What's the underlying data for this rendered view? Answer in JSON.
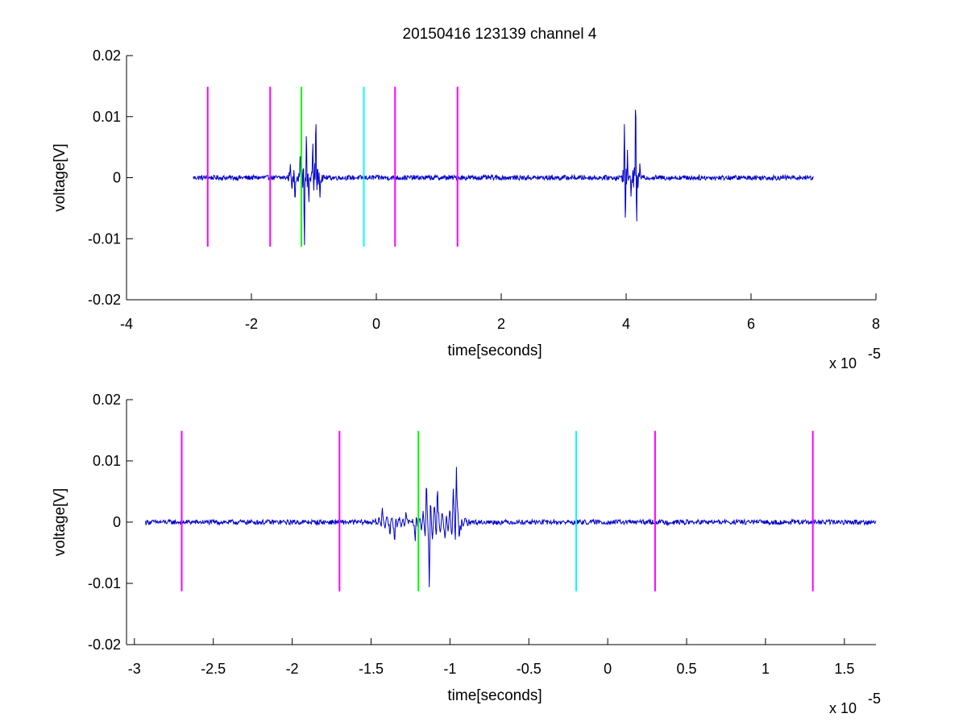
{
  "chart_data": [
    {
      "type": "line",
      "title": "20150416 123139 channel 4",
      "xlabel": "time[seconds]",
      "ylabel": "voltage[V]",
      "x_exponent_label": "x 10",
      "x_exponent_power": "-5",
      "xlim": [
        -4,
        8
      ],
      "ylim": [
        -0.02,
        0.02
      ],
      "x_ticks": [
        -4,
        -2,
        0,
        2,
        4,
        6,
        8
      ],
      "x_tick_labels": [
        "-4",
        "-2",
        "0",
        "2",
        "4",
        "6",
        "8"
      ],
      "y_ticks": [
        0.02,
        0.01,
        0,
        -0.01,
        -0.02
      ],
      "y_tick_labels": [
        "0.02",
        "0.01",
        "0",
        "-0.01",
        "-0.02"
      ],
      "series": [
        {
          "color": "#0000cc",
          "x_range": [
            -2.93,
            7.0
          ],
          "baseline": 0,
          "noise_amplitude": 0.0004,
          "bursts": [
            {
              "x": -1.38,
              "y": 0.003
            },
            {
              "x": -1.35,
              "y": -0.0025
            },
            {
              "x": -1.3,
              "y": -0.004
            },
            {
              "x": -1.22,
              "y": 0.004
            },
            {
              "x": -1.15,
              "y": -0.0105
            },
            {
              "x": -1.12,
              "y": 0.0065
            },
            {
              "x": -1.08,
              "y": -0.004
            },
            {
              "x": -1.02,
              "y": 0.006
            },
            {
              "x": -0.97,
              "y": 0.011
            },
            {
              "x": -0.9,
              "y": -0.003
            },
            {
              "x": 3.97,
              "y": 0.008
            },
            {
              "x": 3.99,
              "y": -0.0065
            },
            {
              "x": 4.02,
              "y": 0.004
            },
            {
              "x": 4.08,
              "y": -0.003
            },
            {
              "x": 4.15,
              "y": 0.0135
            },
            {
              "x": 4.17,
              "y": -0.0055
            },
            {
              "x": 4.22,
              "y": 0.002
            }
          ]
        }
      ],
      "vlines": [
        {
          "x": -2.7,
          "color": "#ff00ff"
        },
        {
          "x": -1.7,
          "color": "#ff00ff"
        },
        {
          "x": -1.2,
          "color": "#00ff00"
        },
        {
          "x": -0.2,
          "color": "#00ffff"
        },
        {
          "x": 0.3,
          "color": "#ff00ff"
        },
        {
          "x": 1.3,
          "color": "#ff00ff"
        }
      ],
      "vline_y_range": [
        -0.0113,
        0.0149
      ]
    },
    {
      "type": "line",
      "title": "",
      "xlabel": "time[seconds]",
      "ylabel": "voltage[V]",
      "x_exponent_label": "x 10",
      "x_exponent_power": "-5",
      "xlim": [
        -3.05,
        1.7
      ],
      "ylim": [
        -0.02,
        0.02
      ],
      "x_ticks": [
        -3,
        -2.5,
        -2,
        -1.5,
        -1,
        -0.5,
        0,
        0.5,
        1,
        1.5
      ],
      "x_tick_labels": [
        "-3",
        "-2.5",
        "-2",
        "-1.5",
        "-1",
        "-0.5",
        "0",
        "0.5",
        "1",
        "1.5"
      ],
      "y_ticks": [
        0.02,
        0.01,
        0,
        -0.01,
        -0.02
      ],
      "y_tick_labels": [
        "0.02",
        "0.01",
        "0",
        "-0.01",
        "-0.02"
      ],
      "series": [
        {
          "color": "#0000cc",
          "x_range": [
            -2.93,
            1.7
          ],
          "baseline": 0,
          "noise_amplitude": 0.0004,
          "bursts": [
            {
              "x": -1.43,
              "y": 0.003
            },
            {
              "x": -1.38,
              "y": -0.002
            },
            {
              "x": -1.35,
              "y": -0.004
            },
            {
              "x": -1.28,
              "y": 0.002
            },
            {
              "x": -1.22,
              "y": -0.0035
            },
            {
              "x": -1.15,
              "y": 0.005
            },
            {
              "x": -1.13,
              "y": -0.0105
            },
            {
              "x": -1.08,
              "y": 0.0065
            },
            {
              "x": -1.03,
              "y": -0.0035
            },
            {
              "x": -0.98,
              "y": 0.004
            },
            {
              "x": -0.96,
              "y": 0.0112
            },
            {
              "x": -0.93,
              "y": -0.003
            }
          ]
        }
      ],
      "vlines": [
        {
          "x": -2.7,
          "color": "#ff00ff"
        },
        {
          "x": -1.7,
          "color": "#ff00ff"
        },
        {
          "x": -1.2,
          "color": "#00ff00"
        },
        {
          "x": -0.2,
          "color": "#00ffff"
        },
        {
          "x": 0.3,
          "color": "#ff00ff"
        },
        {
          "x": 1.3,
          "color": "#ff00ff"
        }
      ],
      "vline_y_range": [
        -0.0113,
        0.0149
      ]
    }
  ]
}
